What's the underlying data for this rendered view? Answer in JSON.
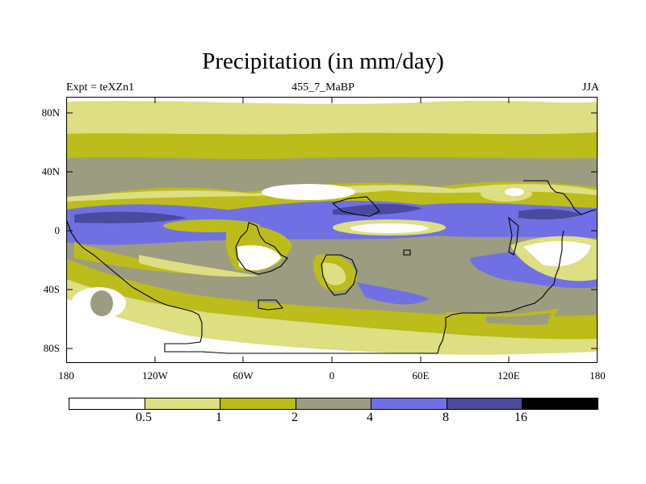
{
  "title": "Precipitation (in mm/day)",
  "subtitle_left": "Expt = teXZn1",
  "subtitle_center": "455_7_MaBP",
  "subtitle_right": "JJA",
  "lat_ticks": [
    "80N",
    "40N",
    "0",
    "40S",
    "80S"
  ],
  "lon_ticks": [
    "180",
    "120W",
    "60W",
    "0",
    "60E",
    "120E",
    "180"
  ],
  "legend": {
    "colors": [
      "#ffffff",
      "#dede82",
      "#bcbc1a",
      "#9c9c80",
      "#7070e4",
      "#4a4a9e",
      "#000000"
    ],
    "labels": [
      "0.5",
      "1",
      "2",
      "4",
      "8",
      "16"
    ]
  },
  "colors": {
    "white": "#ffffff",
    "light_yellow": "#dede82",
    "olive": "#bcbc1a",
    "gray": "#9c9c80",
    "blue": "#7070e4",
    "dark_blue": "#4a4a9e",
    "coastline": "#000000"
  }
}
